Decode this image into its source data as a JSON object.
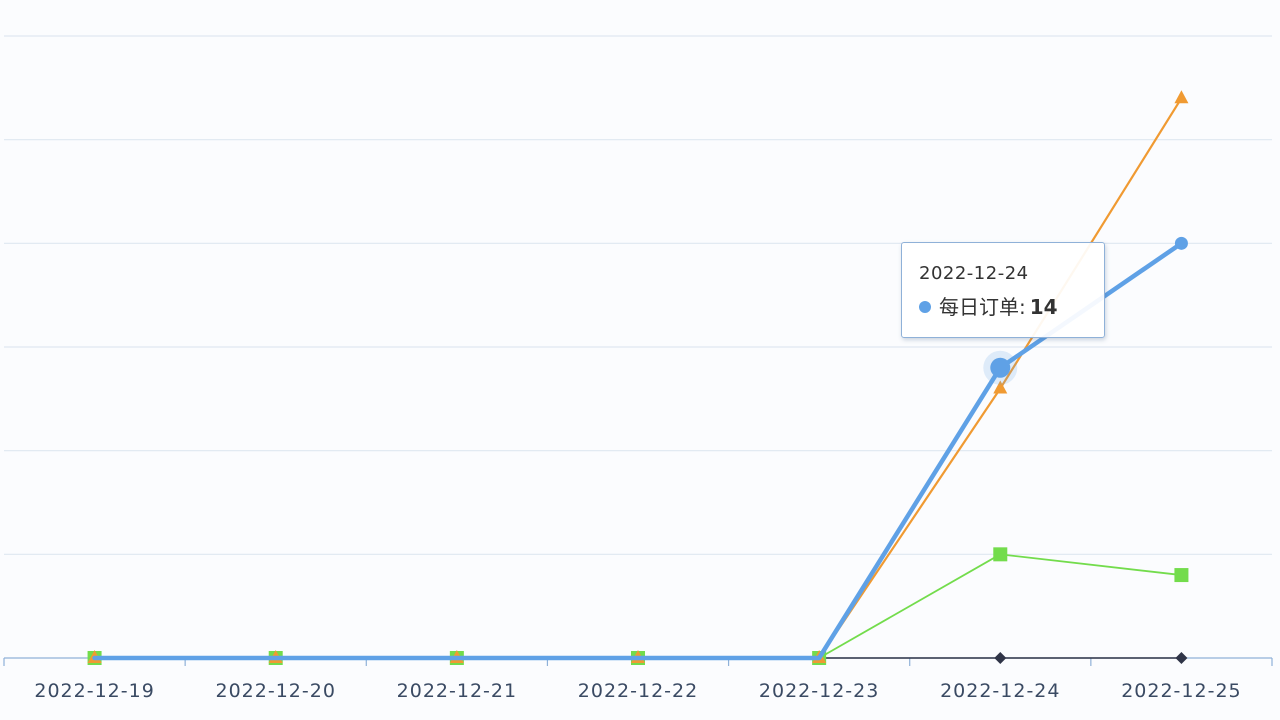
{
  "chart_data": {
    "type": "line",
    "categories": [
      "2022-12-19",
      "2022-12-20",
      "2022-12-21",
      "2022-12-22",
      "2022-12-23",
      "2022-12-24",
      "2022-12-25"
    ],
    "ylim": [
      0,
      30
    ],
    "grid": true,
    "series": [
      {
        "name": "每日订单",
        "color": "#5fa1e6",
        "marker": "circle",
        "values": [
          0,
          0,
          0,
          0,
          0,
          14,
          20
        ]
      },
      {
        "color": "#f09a32",
        "marker": "triangle",
        "values": [
          0,
          0,
          0,
          0,
          0,
          13,
          27
        ]
      },
      {
        "color": "#73dc4c",
        "marker": "square",
        "values": [
          0,
          0,
          0,
          0,
          0,
          5,
          4
        ]
      },
      {
        "color": "#2f3447",
        "marker": "diamond",
        "values": [
          0,
          0,
          0,
          0,
          0,
          0,
          0
        ]
      }
    ],
    "tooltip": {
      "category": "2022-12-24",
      "series_name": "每日订单",
      "value": "14",
      "separator": ":"
    }
  }
}
